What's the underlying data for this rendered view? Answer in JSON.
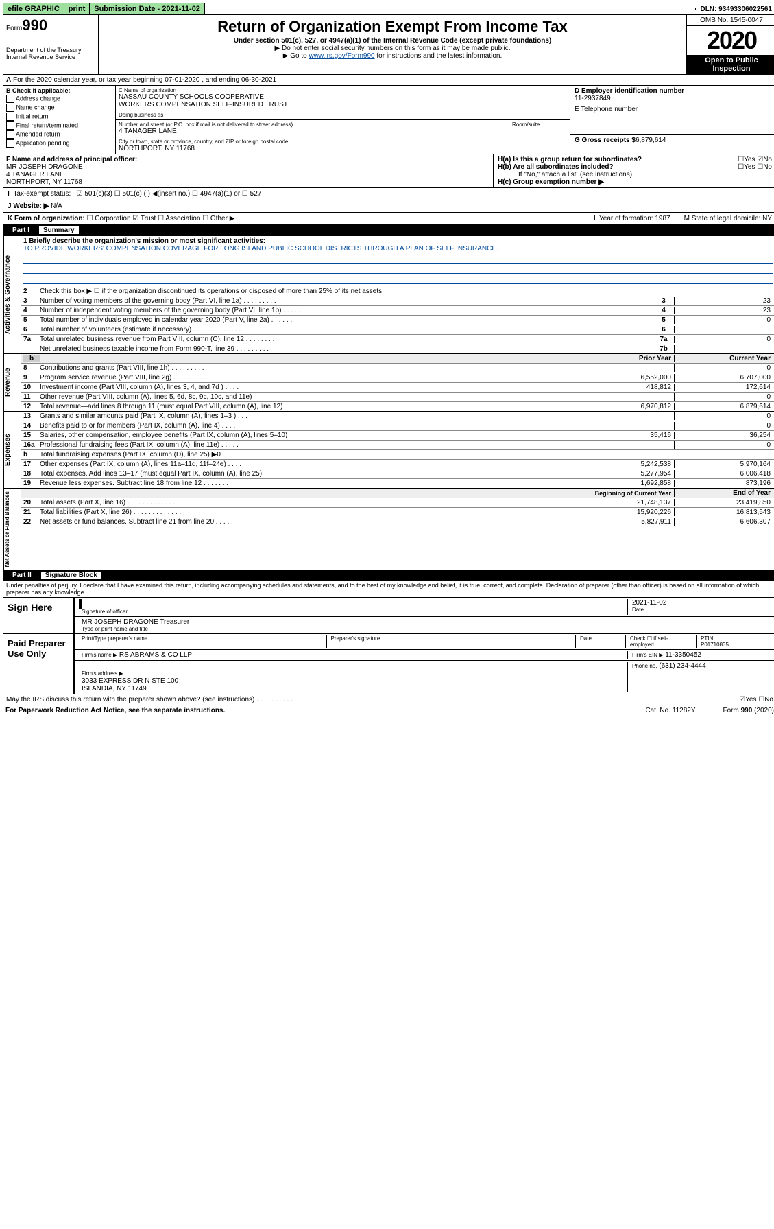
{
  "topbar": {
    "efile": "efile GRAPHIC",
    "print": "print",
    "submission": "Submission Date - 2021-11-02",
    "dln": "DLN: 93493306022561"
  },
  "header": {
    "form_prefix": "Form",
    "form_number": "990",
    "title": "Return of Organization Exempt From Income Tax",
    "subtitle": "Under section 501(c), 527, or 4947(a)(1) of the Internal Revenue Code (except private foundations)",
    "note1": "▶ Do not enter social security numbers on this form as it may be made public.",
    "note2_prefix": "▶ Go to ",
    "note2_link": "www.irs.gov/Form990",
    "note2_suffix": " for instructions and the latest information.",
    "dept": "Department of the Treasury\nInternal Revenue Service",
    "omb": "OMB No. 1545-0047",
    "year": "2020",
    "open": "Open to Public Inspection"
  },
  "rowA": "For the 2020 calendar year, or tax year beginning 07-01-2020   , and ending 06-30-2021",
  "boxB": {
    "label": "B Check if applicable:",
    "opts": [
      "Address change",
      "Name change",
      "Initial return",
      "Final return/terminated",
      "Amended return",
      "Application pending"
    ]
  },
  "boxC": {
    "name_label": "C Name of organization",
    "name": "NASSAU COUNTY SCHOOLS COOPERATIVE\nWORKERS COMPENSATION SELF-INSURED TRUST",
    "dba_label": "Doing business as",
    "dba": "",
    "addr_label": "Number and street (or P.O. box if mail is not delivered to street address)",
    "room_label": "Room/suite",
    "addr": "4 TANAGER LANE",
    "city_label": "City or town, state or province, country, and ZIP or foreign postal code",
    "city": "NORTHPORT, NY  11768"
  },
  "boxD": {
    "label": "D Employer identification number",
    "ein": "11-2937849"
  },
  "boxE": {
    "label": "E Telephone number",
    "phone": ""
  },
  "boxG": {
    "label": "G Gross receipts $",
    "val": "6,879,614"
  },
  "boxF": {
    "label": "F Name and address of principal officer:",
    "name": "MR JOSEPH DRAGONE",
    "addr": "4 TANAGER LANE\nNORTHPORT, NY  11768"
  },
  "boxH": {
    "a": "H(a)  Is this a group return for subordinates?",
    "a_ans": "☐Yes ☑No",
    "b": "H(b)  Are all subordinates included?",
    "b_ans": "☐Yes ☐No",
    "b_note": "If \"No,\" attach a list. (see instructions)",
    "c": "H(c)  Group exemption number ▶"
  },
  "boxI": {
    "label": "Tax-exempt status:",
    "opts": "☑ 501(c)(3)   ☐ 501(c) (  ) ◀(insert no.)   ☐ 4947(a)(1) or   ☐ 527"
  },
  "boxJ": {
    "label": "J   Website: ▶",
    "val": "N/A"
  },
  "boxK": {
    "label": "K Form of organization:",
    "opts": "☐ Corporation  ☑ Trust  ☐ Association  ☐ Other ▶",
    "L": "L Year of formation: 1987",
    "M": "M State of legal domicile: NY"
  },
  "part1": {
    "label": "Part I",
    "title": "Summary"
  },
  "gov": {
    "tab": "Activities & Governance",
    "l1_label": "1  Briefly describe the organization's mission or most significant activities:",
    "l1_text": "TO PROVIDE WORKERS' COMPENSATION COVERAGE FOR LONG ISLAND PUBLIC SCHOOL DISTRICTS THROUGH A PLAN OF SELF INSURANCE.",
    "l2": "Check this box ▶ ☐  if the organization discontinued its operations or disposed of more than 25% of its net assets.",
    "lines": [
      {
        "n": "3",
        "d": "Number of voting members of the governing body (Part VI, line 1a)  .  .  .  .  .  .  .  .  .",
        "b": "3",
        "v": "23"
      },
      {
        "n": "4",
        "d": "Number of independent voting members of the governing body (Part VI, line 1b)  .  .  .  .  .",
        "b": "4",
        "v": "23"
      },
      {
        "n": "5",
        "d": "Total number of individuals employed in calendar year 2020 (Part V, line 2a)  .  .  .  .  .  .",
        "b": "5",
        "v": "0"
      },
      {
        "n": "6",
        "d": "Total number of volunteers (estimate if necessary)  .  .  .  .  .  .  .  .  .  .  .  .  .",
        "b": "6",
        "v": ""
      },
      {
        "n": "7a",
        "d": "Total unrelated business revenue from Part VIII, column (C), line 12  .  .  .  .  .  .  .  .",
        "b": "7a",
        "v": "0"
      },
      {
        "n": "",
        "d": "Net unrelated business taxable income from Form 990-T, line 39  .  .  .  .  .  .  .  .  .",
        "b": "7b",
        "v": ""
      }
    ]
  },
  "twocol_header": {
    "prior": "Prior Year",
    "current": "Current Year"
  },
  "rev": {
    "tab": "Revenue",
    "lines": [
      {
        "n": "8",
        "d": "Contributions and grants (Part VIII, line 1h)  .  .  .  .  .  .  .  .  .",
        "p": "",
        "c": "0"
      },
      {
        "n": "9",
        "d": "Program service revenue (Part VIII, line 2g)  .  .  .  .  .  .  .  .  .",
        "p": "6,552,000",
        "c": "6,707,000"
      },
      {
        "n": "10",
        "d": "Investment income (Part VIII, column (A), lines 3, 4, and 7d )  .  .  .  .",
        "p": "418,812",
        "c": "172,614"
      },
      {
        "n": "11",
        "d": "Other revenue (Part VIII, column (A), lines 5, 6d, 8c, 9c, 10c, and 11e)",
        "p": "",
        "c": "0"
      },
      {
        "n": "12",
        "d": "Total revenue—add lines 8 through 11 (must equal Part VIII, column (A), line 12)",
        "p": "6,970,812",
        "c": "6,879,614"
      }
    ]
  },
  "exp": {
    "tab": "Expenses",
    "lines": [
      {
        "n": "13",
        "d": "Grants and similar amounts paid (Part IX, column (A), lines 1–3 )  .  .  .",
        "p": "",
        "c": "0"
      },
      {
        "n": "14",
        "d": "Benefits paid to or for members (Part IX, column (A), line 4)  .  .  .  .",
        "p": "",
        "c": "0"
      },
      {
        "n": "15",
        "d": "Salaries, other compensation, employee benefits (Part IX, column (A), lines 5–10)",
        "p": "35,416",
        "c": "36,254"
      },
      {
        "n": "16a",
        "d": "Professional fundraising fees (Part IX, column (A), line 11e)  .  .  .  .  .",
        "p": "",
        "c": "0"
      },
      {
        "n": "b",
        "d": "Total fundraising expenses (Part IX, column (D), line 25) ▶0",
        "p": "",
        "c": "",
        "shade": true
      },
      {
        "n": "17",
        "d": "Other expenses (Part IX, column (A), lines 11a–11d, 11f–24e)  .  .  .  .",
        "p": "5,242,538",
        "c": "5,970,164"
      },
      {
        "n": "18",
        "d": "Total expenses. Add lines 13–17 (must equal Part IX, column (A), line 25)",
        "p": "5,277,954",
        "c": "6,006,418"
      },
      {
        "n": "19",
        "d": "Revenue less expenses. Subtract line 18 from line 12  .  .  .  .  .  .  .",
        "p": "1,692,858",
        "c": "873,196"
      }
    ]
  },
  "net_header": {
    "begin": "Beginning of Current Year",
    "end": "End of Year"
  },
  "net": {
    "tab": "Net Assets or Fund Balances",
    "lines": [
      {
        "n": "20",
        "d": "Total assets (Part X, line 16)  .  .  .  .  .  .  .  .  .  .  .  .  .  .",
        "p": "21,748,137",
        "c": "23,419,850"
      },
      {
        "n": "21",
        "d": "Total liabilities (Part X, line 26)  .  .  .  .  .  .  .  .  .  .  .  .  .",
        "p": "15,920,226",
        "c": "16,813,543"
      },
      {
        "n": "22",
        "d": "Net assets or fund balances. Subtract line 21 from line 20  .  .  .  .  .",
        "p": "5,827,911",
        "c": "6,606,307"
      }
    ]
  },
  "part2": {
    "label": "Part II",
    "title": "Signature Block"
  },
  "perjury": "Under penalties of perjury, I declare that I have examined this return, including accompanying schedules and statements, and to the best of my knowledge and belief, it is true, correct, and complete. Declaration of preparer (other than officer) is based on all information of which preparer has any knowledge.",
  "sign": {
    "label": "Sign Here",
    "sig_label": "Signature of officer",
    "date": "2021-11-02",
    "date_label": "Date",
    "name": "MR JOSEPH DRAGONE Treasurer",
    "name_label": "Type or print name and title"
  },
  "paid": {
    "label": "Paid Preparer Use Only",
    "h1": "Print/Type preparer's name",
    "h2": "Preparer's signature",
    "h3": "Date",
    "h4": "Check ☐ if self-employed",
    "h5_label": "PTIN",
    "h5": "P01710835",
    "firm_label": "Firm's name   ▶",
    "firm": "RS ABRAMS & CO LLP",
    "firm_ein_label": "Firm's EIN ▶",
    "firm_ein": "11-3350452",
    "addr_label": "Firm's address ▶",
    "addr": "3033 EXPRESS DR N STE 100\nISLANDIA, NY  11749",
    "phone_label": "Phone no.",
    "phone": "(631) 234-4444"
  },
  "discuss": {
    "q": "May the IRS discuss this return with the preparer shown above? (see instructions)  .  .  .  .  .  .  .  .  .  .",
    "a": "☑Yes  ☐No"
  },
  "footer": {
    "left": "For Paperwork Reduction Act Notice, see the separate instructions.",
    "mid": "Cat. No. 11282Y",
    "right": "Form 990 (2020)"
  }
}
